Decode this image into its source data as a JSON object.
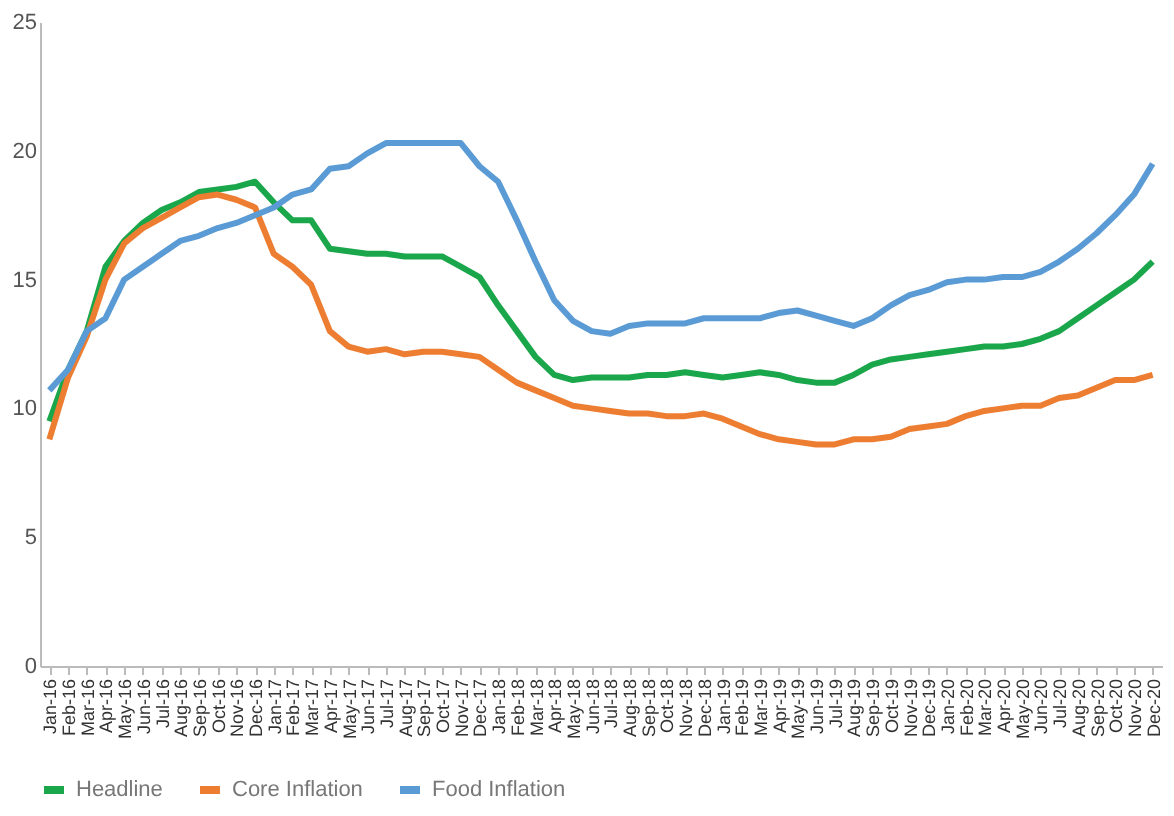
{
  "chart_data": {
    "type": "line",
    "categories": [
      "Jan-16",
      "Feb-16",
      "Mar-16",
      "Apr-16",
      "May-16",
      "Jun-16",
      "Jul-16",
      "Aug-16",
      "Sep-16",
      "Oct-16",
      "Nov-16",
      "Dec-16",
      "Jan-17",
      "Feb-17",
      "Mar-17",
      "Apr-17",
      "May-17",
      "Jun-17",
      "Jul-17",
      "Aug-17",
      "Sep-17",
      "Oct-17",
      "Nov-17",
      "Dec-17",
      "Jan-18",
      "Feb-18",
      "Mar-18",
      "Apr-18",
      "May-18",
      "Jun-18",
      "Jul-18",
      "Aug-18",
      "Sep-18",
      "Oct-18",
      "Nov-18",
      "Dec-18",
      "Jan-19",
      "Feb-19",
      "Mar-19",
      "Apr-19",
      "May-19",
      "Jun-19",
      "Jul-19",
      "Aug-19",
      "Sep-19",
      "Oct-19",
      "Nov-19",
      "Dec-19",
      "Jan-20",
      "Feb-20",
      "Mar-20",
      "Apr-20",
      "May-20",
      "Jun-20",
      "Jul-20",
      "Aug-20",
      "Sep-20",
      "Oct-20",
      "Nov-20",
      "Dec-20"
    ],
    "series": [
      {
        "name": "Headline",
        "color": "#1aa64a",
        "values": [
          9.5,
          11.5,
          13,
          15.5,
          16.5,
          17.2,
          17.7,
          18,
          18.4,
          18.5,
          18.6,
          18.8,
          18,
          17.3,
          17.3,
          16.2,
          16.1,
          16,
          16,
          15.9,
          15.9,
          15.9,
          15.5,
          15.1,
          14,
          13,
          12,
          11.3,
          11.1,
          11.2,
          11.2,
          11.2,
          11.3,
          11.3,
          11.4,
          11.3,
          11.2,
          11.3,
          11.4,
          11.3,
          11.1,
          11,
          11,
          11.3,
          11.7,
          11.9,
          12,
          12.1,
          12.2,
          12.3,
          12.4,
          12.4,
          12.5,
          12.7,
          13,
          13.5,
          14,
          14.5,
          15,
          15.7
        ]
      },
      {
        "name": "Core Inflation",
        "color": "#ed7d31",
        "values": [
          8.8,
          11.2,
          12.8,
          15,
          16.4,
          17,
          17.4,
          17.8,
          18.2,
          18.3,
          18.1,
          17.8,
          16,
          15.5,
          14.8,
          13,
          12.4,
          12.2,
          12.3,
          12.1,
          12.2,
          12.2,
          12.1,
          12,
          11.5,
          11,
          10.7,
          10.4,
          10.1,
          10,
          9.9,
          9.8,
          9.8,
          9.7,
          9.7,
          9.8,
          9.6,
          9.3,
          9,
          8.8,
          8.7,
          8.6,
          8.6,
          8.8,
          8.8,
          8.9,
          9.2,
          9.3,
          9.4,
          9.7,
          9.9,
          10,
          10.1,
          10.1,
          10.4,
          10.5,
          10.8,
          11.1,
          11.1,
          11.3
        ]
      },
      {
        "name": "Food Inflation",
        "color": "#5b9bd5",
        "values": [
          10.7,
          11.5,
          13,
          13.5,
          15,
          15.5,
          16,
          16.5,
          16.7,
          17,
          17.2,
          17.5,
          17.8,
          18.3,
          18.5,
          19.3,
          19.4,
          19.9,
          20.3,
          20.3,
          20.3,
          20.3,
          20.3,
          19.4,
          18.8,
          17.3,
          15.7,
          14.2,
          13.4,
          13,
          12.9,
          13.2,
          13.3,
          13.3,
          13.3,
          13.5,
          13.5,
          13.5,
          13.5,
          13.7,
          13.8,
          13.6,
          13.4,
          13.2,
          13.5,
          14,
          14.4,
          14.6,
          14.9,
          15,
          15,
          15.1,
          15.1,
          15.3,
          15.7,
          16.2,
          16.8,
          17.5,
          18.3,
          19.5
        ]
      }
    ],
    "ylim": [
      0,
      25
    ],
    "yticks": [
      0,
      5,
      10,
      15,
      20,
      25
    ],
    "grid": false,
    "legend": "bottom"
  }
}
